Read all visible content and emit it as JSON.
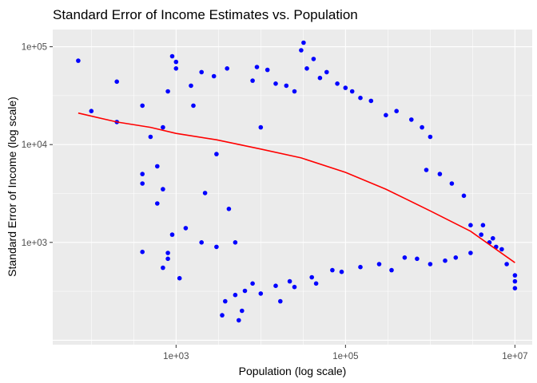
{
  "chart_data": {
    "type": "scatter",
    "title": "Standard Error of Income Estimates vs. Population",
    "xlabel": "Population (log scale)",
    "ylabel": "Standard Error of Income (log scale)",
    "x_scale": "log10",
    "y_scale": "log10",
    "xlim": [
      35,
      16000000
    ],
    "ylim": [
      90,
      150000
    ],
    "x_ticks": [
      {
        "value": 1000,
        "label": "1e+03"
      },
      {
        "value": 100000,
        "label": "1e+05"
      },
      {
        "value": 10000000,
        "label": "1e+07"
      }
    ],
    "y_ticks": [
      {
        "value": 1000,
        "label": "1e+03"
      },
      {
        "value": 10000,
        "label": "1e+04"
      },
      {
        "value": 100000,
        "label": "1e+05"
      }
    ],
    "grid": true,
    "legend": "none",
    "colors": {
      "points": "#0000ff",
      "trend": "#ff0000",
      "panel": "#ebebeb",
      "grid": "#ffffff"
    },
    "series": [
      {
        "kind": "points",
        "points": [
          [
            70,
            72000
          ],
          [
            100,
            22000
          ],
          [
            200,
            44000
          ],
          [
            200,
            17000
          ],
          [
            400,
            25000
          ],
          [
            400,
            5000
          ],
          [
            400,
            4000
          ],
          [
            400,
            800
          ],
          [
            500,
            12000
          ],
          [
            600,
            6000
          ],
          [
            600,
            2500
          ],
          [
            700,
            15000
          ],
          [
            700,
            3500
          ],
          [
            700,
            550
          ],
          [
            800,
            35000
          ],
          [
            800,
            780
          ],
          [
            800,
            680
          ],
          [
            900,
            80000
          ],
          [
            900,
            1200
          ],
          [
            1000,
            70000
          ],
          [
            1000,
            60000
          ],
          [
            1100,
            430
          ],
          [
            1300,
            1400
          ],
          [
            1500,
            40000
          ],
          [
            1600,
            25000
          ],
          [
            2000,
            55000
          ],
          [
            2000,
            1000
          ],
          [
            2200,
            3200
          ],
          [
            2800,
            50000
          ],
          [
            3000,
            8000
          ],
          [
            3000,
            900
          ],
          [
            3500,
            180
          ],
          [
            3800,
            250
          ],
          [
            4000,
            60000
          ],
          [
            4200,
            2200
          ],
          [
            5000,
            290
          ],
          [
            5000,
            1000
          ],
          [
            5500,
            160
          ],
          [
            6000,
            200
          ],
          [
            6500,
            320
          ],
          [
            8000,
            45000
          ],
          [
            8000,
            380
          ],
          [
            9000,
            62000
          ],
          [
            10000,
            15000
          ],
          [
            10000,
            300
          ],
          [
            12000,
            58000
          ],
          [
            15000,
            42000
          ],
          [
            15000,
            360
          ],
          [
            17000,
            250
          ],
          [
            20000,
            40000
          ],
          [
            22000,
            400
          ],
          [
            25000,
            35000
          ],
          [
            25000,
            350
          ],
          [
            30000,
            92000
          ],
          [
            32000,
            110000
          ],
          [
            35000,
            60000
          ],
          [
            40000,
            440
          ],
          [
            42000,
            75000
          ],
          [
            45000,
            380
          ],
          [
            50000,
            48000
          ],
          [
            60000,
            55000
          ],
          [
            70000,
            520
          ],
          [
            80000,
            42000
          ],
          [
            90000,
            500
          ],
          [
            100000,
            38000
          ],
          [
            120000,
            35000
          ],
          [
            150000,
            30000
          ],
          [
            150000,
            560
          ],
          [
            200000,
            28000
          ],
          [
            250000,
            600
          ],
          [
            300000,
            20000
          ],
          [
            350000,
            520
          ],
          [
            400000,
            22000
          ],
          [
            500000,
            700
          ],
          [
            600000,
            18000
          ],
          [
            700000,
            680
          ],
          [
            800000,
            15000
          ],
          [
            900000,
            5500
          ],
          [
            1000000,
            12000
          ],
          [
            1000000,
            600
          ],
          [
            1300000,
            5000
          ],
          [
            1500000,
            650
          ],
          [
            1800000,
            4000
          ],
          [
            2000000,
            700
          ],
          [
            2500000,
            3000
          ],
          [
            3000000,
            1500
          ],
          [
            3000000,
            780
          ],
          [
            4000000,
            1200
          ],
          [
            4200000,
            1500
          ],
          [
            5000000,
            1000
          ],
          [
            5500000,
            1100
          ],
          [
            6000000,
            900
          ],
          [
            7000000,
            850
          ],
          [
            8000000,
            600
          ],
          [
            10000000,
            340
          ],
          [
            10000000,
            400
          ],
          [
            10000000,
            460
          ]
        ]
      },
      {
        "kind": "trend",
        "points": [
          [
            70,
            21000
          ],
          [
            200,
            17000
          ],
          [
            500,
            15000
          ],
          [
            1000,
            13000
          ],
          [
            3000,
            11200
          ],
          [
            10000,
            9000
          ],
          [
            30000,
            7300
          ],
          [
            100000,
            5200
          ],
          [
            300000,
            3500
          ],
          [
            1000000,
            2100
          ],
          [
            3000000,
            1300
          ],
          [
            10000000,
            620
          ]
        ]
      }
    ]
  }
}
